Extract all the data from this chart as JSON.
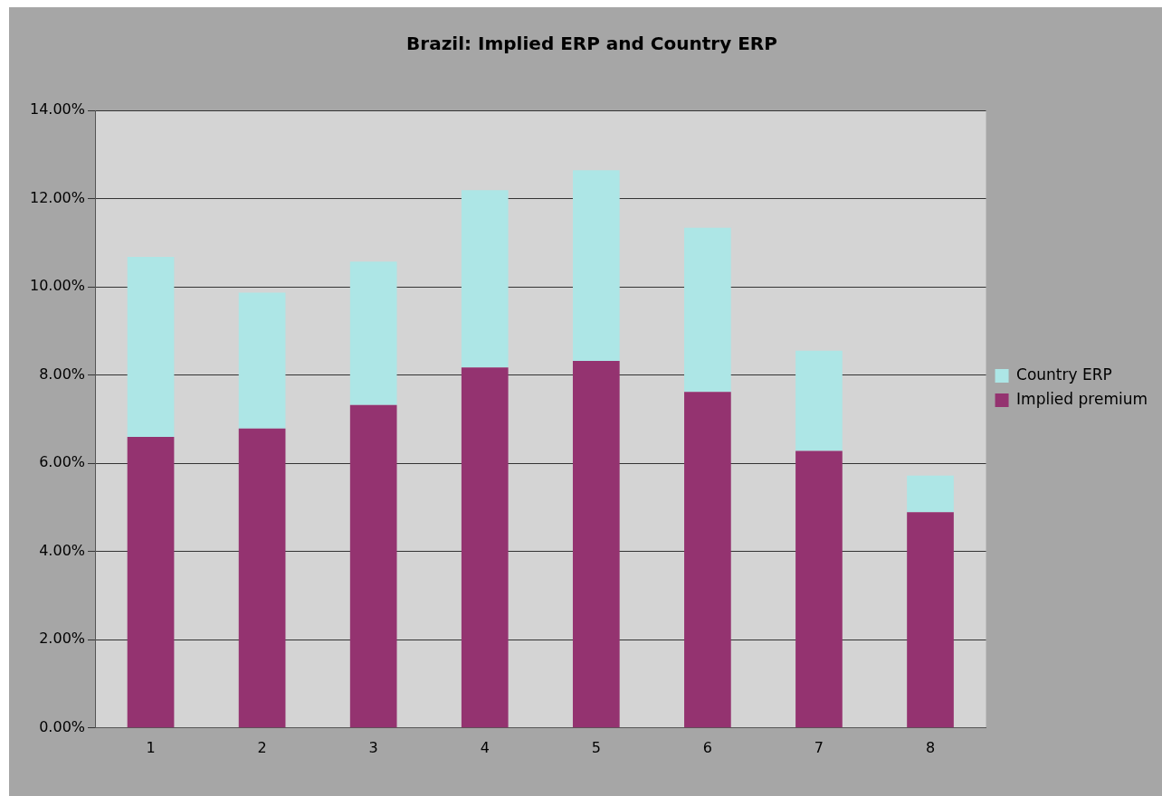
{
  "chart_data": {
    "type": "bar",
    "title": "Brazil: Implied ERP and Country ERP",
    "stacked": true,
    "categories": [
      "1",
      "2",
      "3",
      "4",
      "5",
      "6",
      "7",
      "8"
    ],
    "series": [
      {
        "name": "Implied premium",
        "color": "#943370",
        "values": [
          6.6,
          6.79,
          7.32,
          8.17,
          8.32,
          7.62,
          6.28,
          4.89
        ]
      },
      {
        "name": "Country ERP",
        "color": "#ade6e6",
        "values": [
          4.08,
          3.08,
          3.25,
          4.02,
          4.32,
          3.72,
          2.27,
          0.83
        ]
      }
    ],
    "ylim": [
      0,
      14
    ],
    "yticks": [
      {
        "value": 0,
        "label": "0.00%"
      },
      {
        "value": 2,
        "label": "2.00%"
      },
      {
        "value": 4,
        "label": "4.00%"
      },
      {
        "value": 6,
        "label": "6.00%"
      },
      {
        "value": 8,
        "label": "8.00%"
      },
      {
        "value": 10,
        "label": "10.00%"
      },
      {
        "value": 12,
        "label": "12.00%"
      },
      {
        "value": 14,
        "label": "14.00%"
      }
    ],
    "grid": "y",
    "legend": "right"
  }
}
